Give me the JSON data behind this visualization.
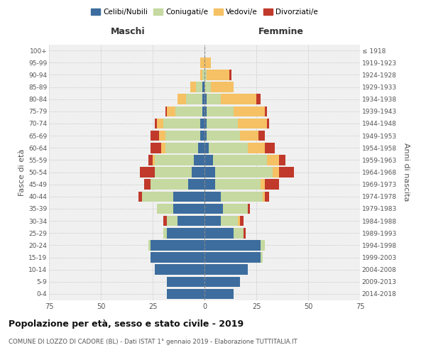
{
  "age_groups": [
    "0-4",
    "5-9",
    "10-14",
    "15-19",
    "20-24",
    "25-29",
    "30-34",
    "35-39",
    "40-44",
    "45-49",
    "50-54",
    "55-59",
    "60-64",
    "65-69",
    "70-74",
    "75-79",
    "80-84",
    "85-89",
    "90-94",
    "95-99",
    "100+"
  ],
  "birth_years": [
    "2014-2018",
    "2009-2013",
    "2004-2008",
    "1999-2003",
    "1994-1998",
    "1989-1993",
    "1984-1988",
    "1979-1983",
    "1974-1978",
    "1969-1973",
    "1964-1968",
    "1959-1963",
    "1954-1958",
    "1949-1953",
    "1944-1948",
    "1939-1943",
    "1934-1938",
    "1929-1933",
    "1924-1928",
    "1919-1923",
    "≤ 1918"
  ],
  "males": {
    "celibi": [
      18,
      18,
      24,
      26,
      26,
      18,
      13,
      15,
      15,
      8,
      6,
      5,
      3,
      2,
      2,
      1,
      1,
      1,
      0,
      0,
      0
    ],
    "coniugati": [
      0,
      0,
      0,
      0,
      1,
      2,
      5,
      8,
      15,
      18,
      18,
      19,
      16,
      17,
      18,
      13,
      8,
      3,
      1,
      0,
      0
    ],
    "vedovi": [
      0,
      0,
      0,
      0,
      0,
      0,
      0,
      0,
      0,
      0,
      0,
      1,
      2,
      3,
      3,
      4,
      4,
      3,
      1,
      2,
      0
    ],
    "divorziati": [
      0,
      0,
      0,
      0,
      0,
      0,
      2,
      0,
      2,
      3,
      7,
      2,
      5,
      4,
      1,
      1,
      0,
      0,
      0,
      0,
      0
    ]
  },
  "females": {
    "nubili": [
      14,
      17,
      21,
      27,
      27,
      14,
      8,
      9,
      8,
      5,
      5,
      4,
      2,
      1,
      1,
      1,
      1,
      0,
      0,
      0,
      0
    ],
    "coniugate": [
      0,
      0,
      0,
      1,
      2,
      5,
      8,
      12,
      20,
      22,
      28,
      26,
      19,
      16,
      15,
      13,
      7,
      3,
      1,
      0,
      0
    ],
    "vedove": [
      0,
      0,
      0,
      0,
      0,
      0,
      1,
      0,
      1,
      2,
      3,
      6,
      8,
      9,
      14,
      15,
      17,
      11,
      11,
      3,
      0
    ],
    "divorziate": [
      0,
      0,
      0,
      0,
      0,
      1,
      2,
      1,
      2,
      7,
      7,
      3,
      5,
      3,
      1,
      1,
      2,
      0,
      1,
      0,
      0
    ]
  },
  "colors": {
    "celibi": "#3d6d9e",
    "coniugati": "#c5d9a0",
    "vedovi": "#f5c164",
    "divorziati": "#c0392b"
  },
  "legend_labels": [
    "Celibi/Nubili",
    "Coniugati/e",
    "Vedovi/e",
    "Divorziati/e"
  ],
  "title": "Popolazione per età, sesso e stato civile - 2019",
  "subtitle": "COMUNE DI LOZZO DI CADORE (BL) - Dati ISTAT 1° gennaio 2019 - Elaborazione TUTTITALIA.IT",
  "xlabel_left": "Maschi",
  "xlabel_right": "Femmine",
  "ylabel_left": "Fasce di età",
  "ylabel_right": "Anni di nascita",
  "xlim": 75,
  "bg_color": "#f0f0f0"
}
